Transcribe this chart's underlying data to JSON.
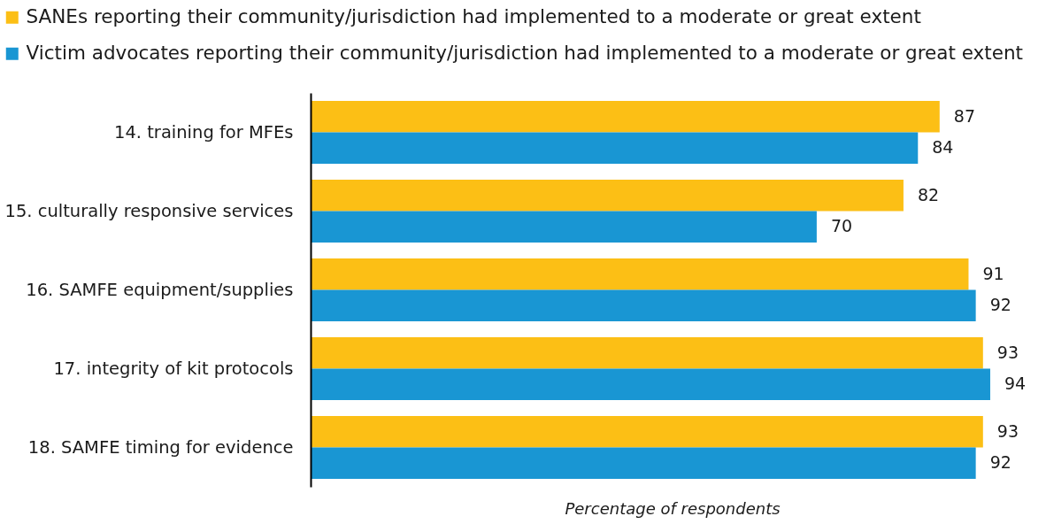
{
  "chart_data": {
    "type": "bar",
    "orientation": "horizontal",
    "xlabel": "Percentage of respondents",
    "categories": [
      "14. training for MFEs",
      "15. culturally responsive services",
      "16. SAMFE equipment/supplies",
      "17. integrity of kit protocols",
      "18. SAMFE timing for evidence"
    ],
    "series": [
      {
        "name": "SANEs reporting their community/jurisdiction had implemented to a moderate or great extent",
        "color": "#fcbf15",
        "values": [
          87,
          82,
          91,
          93,
          93
        ]
      },
      {
        "name": "Victim advocates reporting their community/jurisdiction had implemented to a moderate or great extent",
        "color": "#1996d3",
        "values": [
          84,
          70,
          92,
          94,
          92
        ]
      }
    ],
    "data_labels": true,
    "legend": "top left",
    "tick_labels": "y"
  }
}
